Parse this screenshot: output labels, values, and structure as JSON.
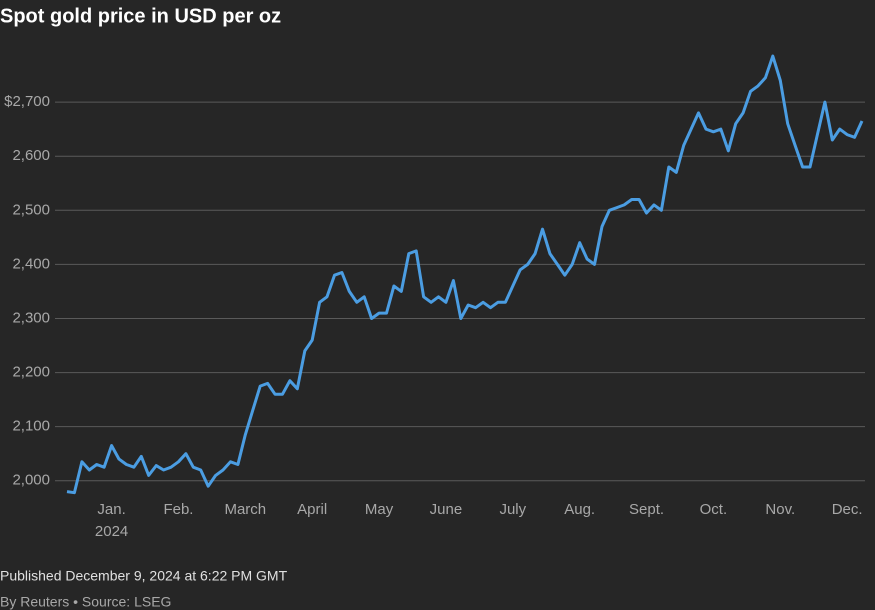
{
  "chart_data": {
    "type": "line",
    "title": "Spot gold price in USD per oz",
    "categories": [
      null,
      null,
      null,
      null,
      null,
      null,
      "Jan.",
      null,
      null,
      null,
      null,
      null,
      null,
      null,
      null,
      "Feb.",
      null,
      null,
      null,
      null,
      null,
      null,
      null,
      null,
      "March",
      null,
      null,
      null,
      null,
      null,
      null,
      null,
      null,
      "April",
      null,
      null,
      null,
      null,
      null,
      null,
      null,
      null,
      "May",
      null,
      null,
      null,
      null,
      null,
      null,
      null,
      null,
      "June",
      null,
      null,
      null,
      null,
      null,
      null,
      null,
      null,
      "July",
      null,
      null,
      null,
      null,
      null,
      null,
      null,
      null,
      "Aug.",
      null,
      null,
      null,
      null,
      null,
      null,
      null,
      null,
      "Sept.",
      null,
      null,
      null,
      null,
      null,
      null,
      null,
      null,
      "Oct.",
      null,
      null,
      null,
      null,
      null,
      null,
      null,
      null,
      "Nov.",
      null,
      null,
      null,
      null,
      null,
      null,
      null,
      null,
      "Dec.",
      null,
      null
    ],
    "year_label": "2024",
    "series": [
      {
        "name": "Spot gold",
        "color": "#4b9de2",
        "values": [
          1980,
          1978,
          2035,
          2020,
          2030,
          2025,
          2065,
          2040,
          2030,
          2025,
          2045,
          2010,
          2028,
          2020,
          2025,
          2035,
          2050,
          2025,
          2020,
          1990,
          2010,
          2020,
          2035,
          2030,
          2085,
          2130,
          2175,
          2180,
          2160,
          2160,
          2185,
          2170,
          2240,
          2260,
          2330,
          2340,
          2380,
          2385,
          2350,
          2330,
          2340,
          2300,
          2310,
          2310,
          2360,
          2350,
          2420,
          2425,
          2340,
          2330,
          2340,
          2330,
          2370,
          2300,
          2325,
          2320,
          2330,
          2320,
          2330,
          2330,
          2360,
          2390,
          2400,
          2420,
          2465,
          2420,
          2400,
          2380,
          2400,
          2440,
          2410,
          2400,
          2470,
          2500,
          2505,
          2510,
          2520,
          2520,
          2495,
          2510,
          2500,
          2580,
          2570,
          2620,
          2650,
          2680,
          2650,
          2645,
          2650,
          2610,
          2660,
          2680,
          2720,
          2730,
          2745,
          2785,
          2740,
          2660,
          2620,
          2580,
          2580,
          2640,
          2700,
          2630,
          2650,
          2640,
          2635,
          2665
        ]
      }
    ],
    "ylim": [
      1970,
      2800
    ],
    "yticks": [
      {
        "value": 2000,
        "label": "2,000"
      },
      {
        "value": 2100,
        "label": "2,100"
      },
      {
        "value": 2200,
        "label": "2,200"
      },
      {
        "value": 2300,
        "label": "2,300"
      },
      {
        "value": 2400,
        "label": "2,400"
      },
      {
        "value": 2500,
        "label": "2,500"
      },
      {
        "value": 2600,
        "label": "2,600"
      },
      {
        "value": 2700,
        "label": "$2,700"
      }
    ],
    "grid": true,
    "published": "Published December 9, 2024 at 6:22 PM GMT",
    "source": "By Reuters • Source: LSEG"
  }
}
